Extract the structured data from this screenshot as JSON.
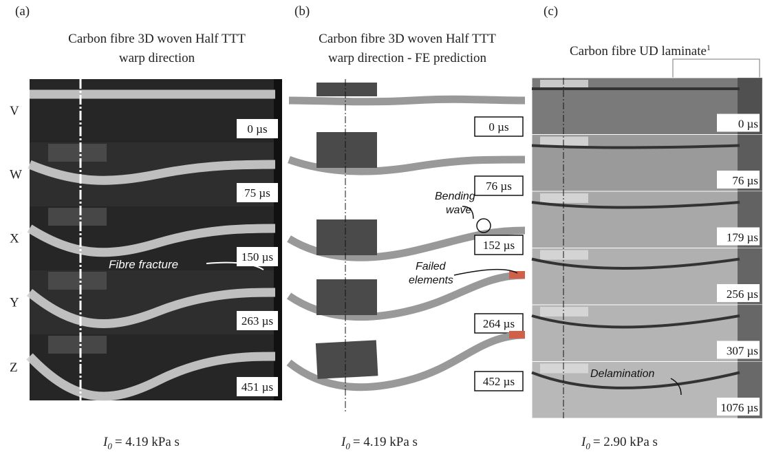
{
  "row_labels": [
    "V",
    "W",
    "X",
    "Y",
    "Z"
  ],
  "panels": [
    {
      "label": "(a)",
      "title": [
        "Carbon fibre 3D woven Half TTT",
        "warp direction"
      ],
      "times": [
        "0 µs",
        "75 µs",
        "150 µs",
        "263 µs",
        "451 µs"
      ],
      "annotations": [
        "Fibre fracture"
      ],
      "impulse": {
        "symbol": "I",
        "subscript": "0",
        "text": "= 4.19 kPa s"
      }
    },
    {
      "label": "(b)",
      "title": [
        "Carbon fibre 3D woven Half TTT",
        "warp direction - FE prediction"
      ],
      "times": [
        "0 µs",
        "76 µs",
        "152 µs",
        "264 µs",
        "452 µs"
      ],
      "annotations": [
        "Bending",
        "wave",
        "Failed",
        "elements"
      ],
      "impulse": {
        "symbol": "I",
        "subscript": "0",
        "text": "= 4.19 kPa s"
      }
    },
    {
      "label": "(c)",
      "title": [
        "Carbon fibre UD laminate"
      ],
      "title_superscript": "1",
      "times": [
        "0 µs",
        "76 µs",
        "179 µs",
        "256 µs",
        "307 µs",
        "1076 µs"
      ],
      "annotations": [
        "Delamination"
      ],
      "impulse": {
        "symbol": "I",
        "subscript": "0",
        "text": "= 2.90 kPa s"
      }
    }
  ]
}
